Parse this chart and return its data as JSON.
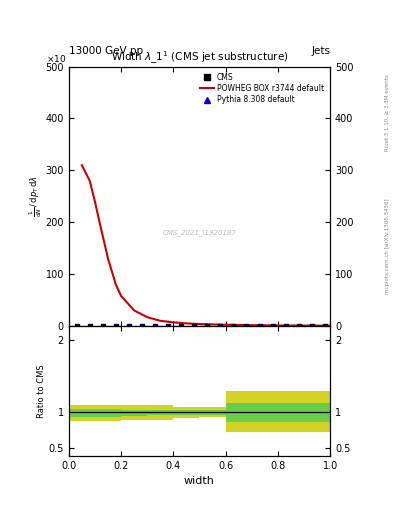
{
  "title": "Width $\\lambda\\_1^1$ (CMS jet substructure)",
  "header_left": "13000 GeV pp",
  "header_right": "Jets",
  "right_label_top": "Rivet 3.1.10, ≥ 3.3M events",
  "right_label_bottom": "mcplots.cern.ch [arXiv:1306.3436]",
  "watermark": "CMS_2021_I1920187",
  "ylabel_main_left": "mathrm d^2N",
  "ylabel_ratio": "Ratio to CMS",
  "xlabel": "width",
  "x10_label": "×10",
  "ylim_main": [
    0,
    500
  ],
  "ylim_ratio": [
    0.4,
    2.2
  ],
  "red_curve_x": [
    0.05,
    0.08,
    0.1,
    0.12,
    0.15,
    0.18,
    0.2,
    0.25,
    0.3,
    0.35,
    0.4,
    0.45,
    0.5,
    0.55,
    0.6,
    0.65,
    0.7,
    0.75,
    0.8,
    0.85,
    0.9,
    0.95,
    1.0
  ],
  "red_curve_y": [
    310,
    280,
    240,
    195,
    130,
    80,
    58,
    30,
    17,
    10,
    7.0,
    5.0,
    3.8,
    3.0,
    2.4,
    1.9,
    1.6,
    1.3,
    1.1,
    0.9,
    0.8,
    0.7,
    0.6
  ],
  "cms_points_x": [
    0.03,
    0.08,
    0.13,
    0.18,
    0.23,
    0.28,
    0.33,
    0.38,
    0.43,
    0.48,
    0.53,
    0.58,
    0.63,
    0.68,
    0.73,
    0.78,
    0.83,
    0.88,
    0.93,
    0.98
  ],
  "cms_points_y": [
    0.3,
    0.3,
    0.3,
    0.3,
    0.3,
    0.3,
    0.3,
    0.3,
    0.3,
    0.3,
    0.3,
    0.3,
    0.3,
    0.3,
    0.3,
    0.3,
    0.3,
    0.3,
    0.3,
    0.3
  ],
  "pythia_points_x": [
    0.03,
    0.08,
    0.13,
    0.18,
    0.23,
    0.28,
    0.33,
    0.38,
    0.43,
    0.48,
    0.53,
    0.58,
    0.63,
    0.68,
    0.73,
    0.78,
    0.83,
    0.88,
    0.93,
    0.98
  ],
  "pythia_points_y": [
    0.3,
    0.3,
    0.3,
    0.3,
    0.3,
    0.3,
    0.3,
    0.3,
    0.3,
    0.3,
    0.3,
    0.3,
    0.3,
    0.3,
    0.3,
    0.3,
    0.3,
    0.3,
    0.3,
    0.3
  ],
  "band_edges": [
    0.0,
    0.1,
    0.2,
    0.3,
    0.4,
    0.5,
    0.6,
    1.0
  ],
  "yellow_lo": [
    0.88,
    0.88,
    0.9,
    0.9,
    0.92,
    0.93,
    0.73,
    0.73
  ],
  "yellow_hi": [
    1.1,
    1.1,
    1.1,
    1.1,
    1.08,
    1.08,
    1.3,
    1.3
  ],
  "green_lo": [
    0.93,
    0.93,
    0.95,
    0.96,
    0.97,
    0.97,
    0.87,
    0.87
  ],
  "green_hi": [
    1.05,
    1.05,
    1.04,
    1.04,
    1.03,
    1.03,
    1.13,
    1.13
  ],
  "color_red": "#cc0000",
  "color_blue": "#0000cc",
  "color_green": "#55cc55",
  "color_yellow": "#cccc00",
  "legend_entries": [
    "CMS",
    "POWHEG BOX r3744 default",
    "Pythia 8.308 default"
  ]
}
